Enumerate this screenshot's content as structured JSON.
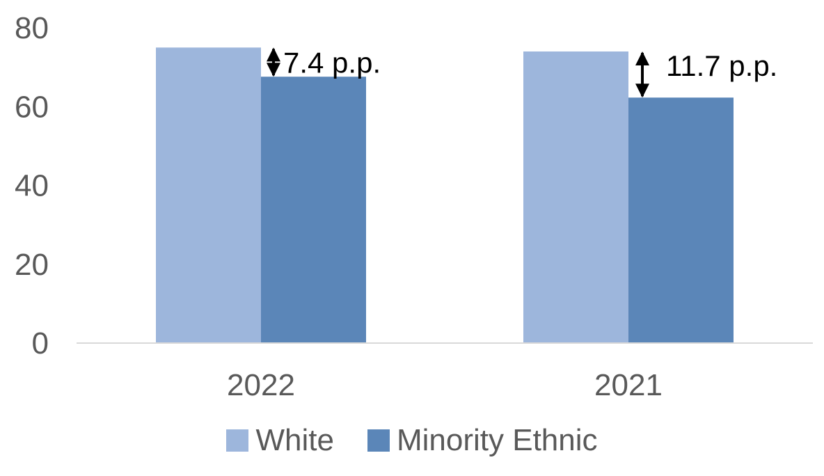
{
  "chart_data": {
    "type": "bar",
    "categories": [
      "2022",
      "2021"
    ],
    "series": [
      {
        "name": "White",
        "values": [
          75,
          74
        ],
        "color": "#9db6dc"
      },
      {
        "name": "Minority Ethnic",
        "values": [
          67.6,
          62.3
        ],
        "color": "#5b86b8"
      }
    ],
    "ylim": [
      0,
      80
    ],
    "yticks": [
      0,
      20,
      40,
      60,
      80
    ],
    "grid": false,
    "legend": "bottom",
    "annotations": [
      {
        "category": "2022",
        "text": "7.4 p.p."
      },
      {
        "category": "2021",
        "text": "11.7 p.p."
      }
    ]
  }
}
